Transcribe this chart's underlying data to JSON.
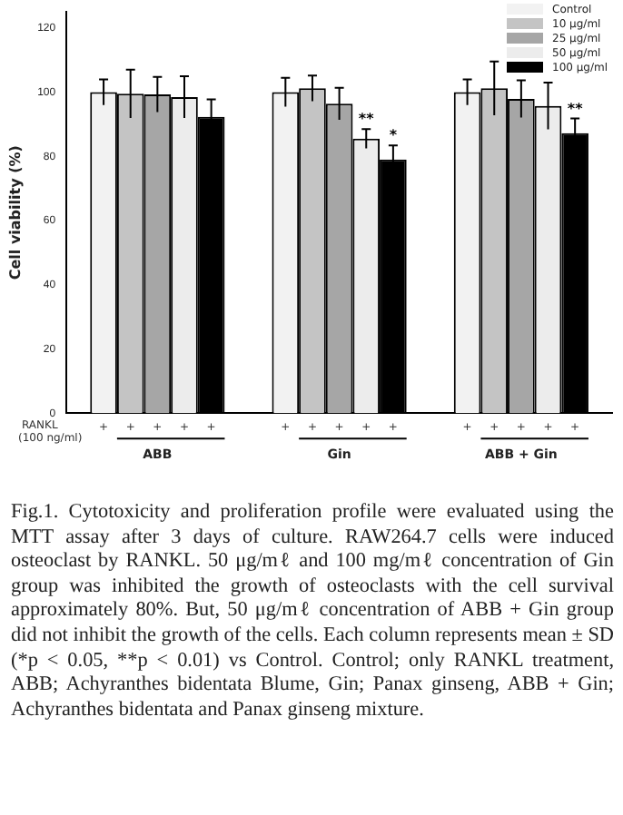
{
  "chart_data": {
    "type": "bar",
    "ylabel": "Cell viability (%)",
    "categories": [
      "ABB",
      "Gin",
      "ABB + Gin"
    ],
    "series": [
      {
        "name": "Control",
        "color": "#f2f2f2",
        "values": [
          100,
          100,
          100
        ],
        "errors": [
          4,
          4.5,
          4
        ]
      },
      {
        "name": "10 μg/ml",
        "color": "#c4c4c4",
        "values": [
          99.5,
          101.2,
          101.2
        ],
        "errors": [
          7.5,
          4,
          8.4
        ]
      },
      {
        "name": "25 μg/ml",
        "color": "#a6a6a6",
        "values": [
          99.3,
          96.4,
          97.9
        ],
        "errors": [
          5.5,
          5,
          5.8
        ]
      },
      {
        "name": "50 μg/ml",
        "color": "#ececec",
        "values": [
          98.5,
          85.5,
          95.7
        ],
        "errors": [
          6.5,
          3,
          7.3
        ],
        "value_labels": [
          null,
          "**",
          null
        ]
      },
      {
        "name": "100 μg/ml",
        "color": "#000000",
        "values": [
          92.3,
          79,
          87.2
        ],
        "errors": [
          5.5,
          4.4,
          4.6
        ],
        "value_labels": [
          null,
          "*",
          "**"
        ]
      }
    ],
    "ylim": [
      0,
      125
    ],
    "yticks": [
      0,
      20,
      40,
      60,
      80,
      100,
      120
    ],
    "grid": false,
    "legend": "top right",
    "annotations": [
      "RANKL (100 ng/ml)",
      "+",
      "+",
      "+",
      "+",
      "+",
      "+",
      "+",
      "+",
      "+",
      "+",
      "+",
      "+",
      "+",
      "+",
      "+",
      "Fig.1. Cytotoxicity and proliferation profile were evaluated using the MTT assay after 3 days of culture. RAW264.7 cells were induced osteoclast by RANKL. 50 μg/mℓ and 100 mg/mℓ concentration of Gin group was inhibited the growth of osteoclasts with the cell survival approximately 80%. But, 50 μg/mℓ concentration of ABB + Gin group did not inhibit the growth of the cells. Each column represents mean ± SD (*p < 0.05, **p < 0.01) vs Control. Control; only RANKL treatment, ABB; Achyranthes bidentata Blume, Gin; Panax ginseng, ABB + Gin; Achyranthes bidentata and Panax ginseng mixture."
    ]
  }
}
